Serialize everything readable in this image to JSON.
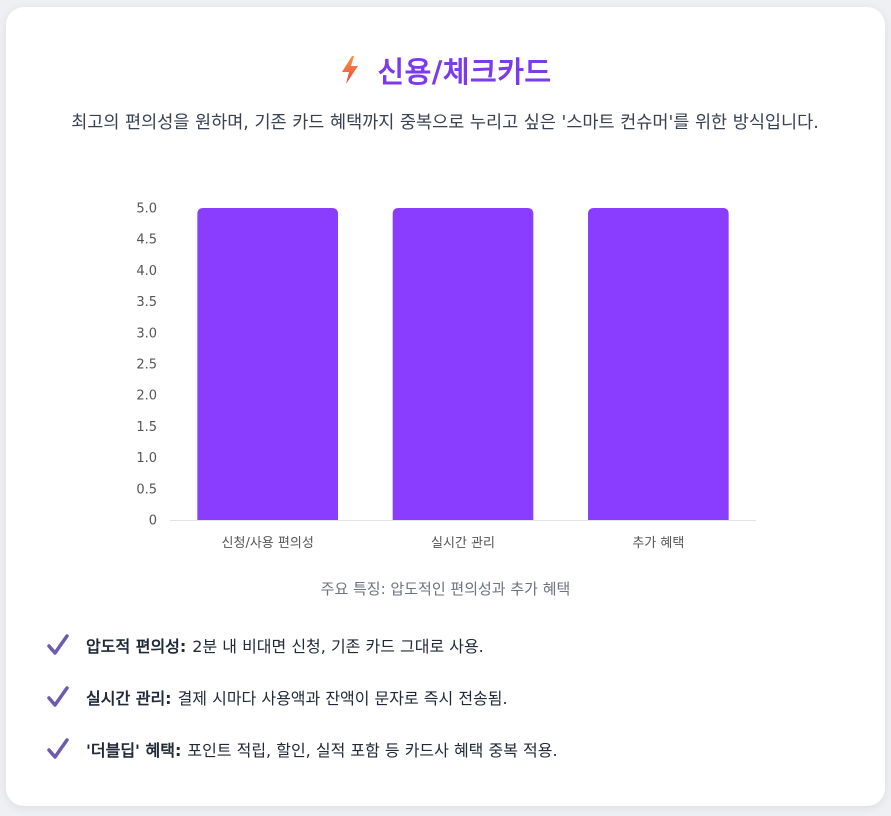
{
  "header": {
    "title": "신용/체크카드",
    "subtitle": "최고의 편의성을 원하며, 기존 카드 혜택까지 중복으로 누리고 싶은 '스마트 컨슈머'를 위한 방식입니다.",
    "title_color": "#7c3aed"
  },
  "chart_data": {
    "type": "bar",
    "categories": [
      "신청/사용 편의성",
      "실시간 관리",
      "추가 혜택"
    ],
    "values": [
      5,
      5,
      5
    ],
    "ylim": [
      0,
      5
    ],
    "yticks": [
      "0",
      "0.5",
      "1.0",
      "1.5",
      "2.0",
      "2.5",
      "3.0",
      "3.5",
      "4.0",
      "4.5",
      "5.0"
    ],
    "bar_color": "#8b3dff",
    "grid": false,
    "legend": false
  },
  "caption": "주요 특징: 압도적인 편의성과 추가 혜택",
  "features": [
    {
      "title": "압도적 편의성:",
      "text": "2분 내 비대면 신청, 기존 카드 그대로 사용."
    },
    {
      "title": "실시간 관리:",
      "text": "결제 시마다 사용액과 잔액이 문자로 즉시 전송됨."
    },
    {
      "title": "'더블딥' 혜택:",
      "text": "포인트 적립, 할인, 실적 포함 등 카드사 혜택 중복 적용."
    }
  ],
  "icons": {
    "title": "lightning-icon",
    "feature": "check-icon"
  }
}
